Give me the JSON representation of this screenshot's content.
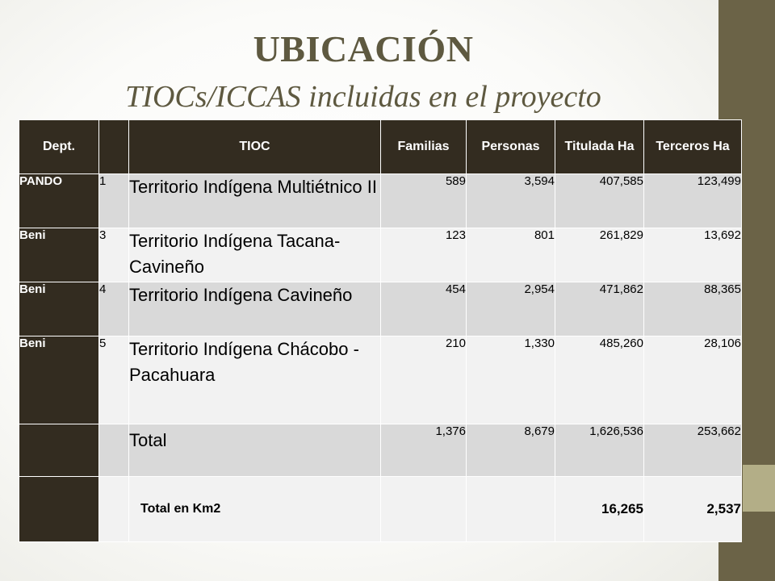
{
  "slide": {
    "title": "UBICACIÓN",
    "subtitle": "TIOCs/ICCAS incluidas en el proyecto",
    "colors": {
      "sidebar": "#6b6347",
      "sidebar_accent": "#b3ae87",
      "header_bg": "#332c20",
      "title_text": "#5e5940"
    }
  },
  "table": {
    "headers": {
      "dept": "Dept.",
      "num": "",
      "tioc": "TIOC",
      "familias": "Familias",
      "personas": "Personas",
      "titulada": "Titulada Ha",
      "terceros": "Terceros Ha"
    },
    "rows": [
      {
        "dept": "PANDO",
        "num": "1",
        "tioc": "Territorio Indígena Multiétnico II",
        "familias": "589",
        "personas": "3,594",
        "titulada": "407,585",
        "terceros": "123,499"
      },
      {
        "dept": "Beni",
        "num": "3",
        "tioc": "Territorio Indígena Tacana-Cavineño",
        "familias": "123",
        "personas": "801",
        "titulada": "261,829",
        "terceros": "13,692"
      },
      {
        "dept": "Beni",
        "num": "4",
        "tioc": "Territorio Indígena Cavineño",
        "familias": "454",
        "personas": "2,954",
        "titulada": "471,862",
        "terceros": "88,365"
      },
      {
        "dept": "Beni",
        "num": "5",
        "tioc": "Territorio Indígena Chácobo - Pacahuara",
        "familias": "210",
        "personas": "1,330",
        "titulada": "485,260",
        "terceros": "28,106"
      }
    ],
    "total": {
      "label": "Total",
      "familias": "1,376",
      "personas": "8,679",
      "titulada": "1,626,536",
      "terceros": "253,662"
    },
    "total_km2": {
      "label": "Total en Km2",
      "titulada": "16,265",
      "terceros": "2,537"
    }
  }
}
